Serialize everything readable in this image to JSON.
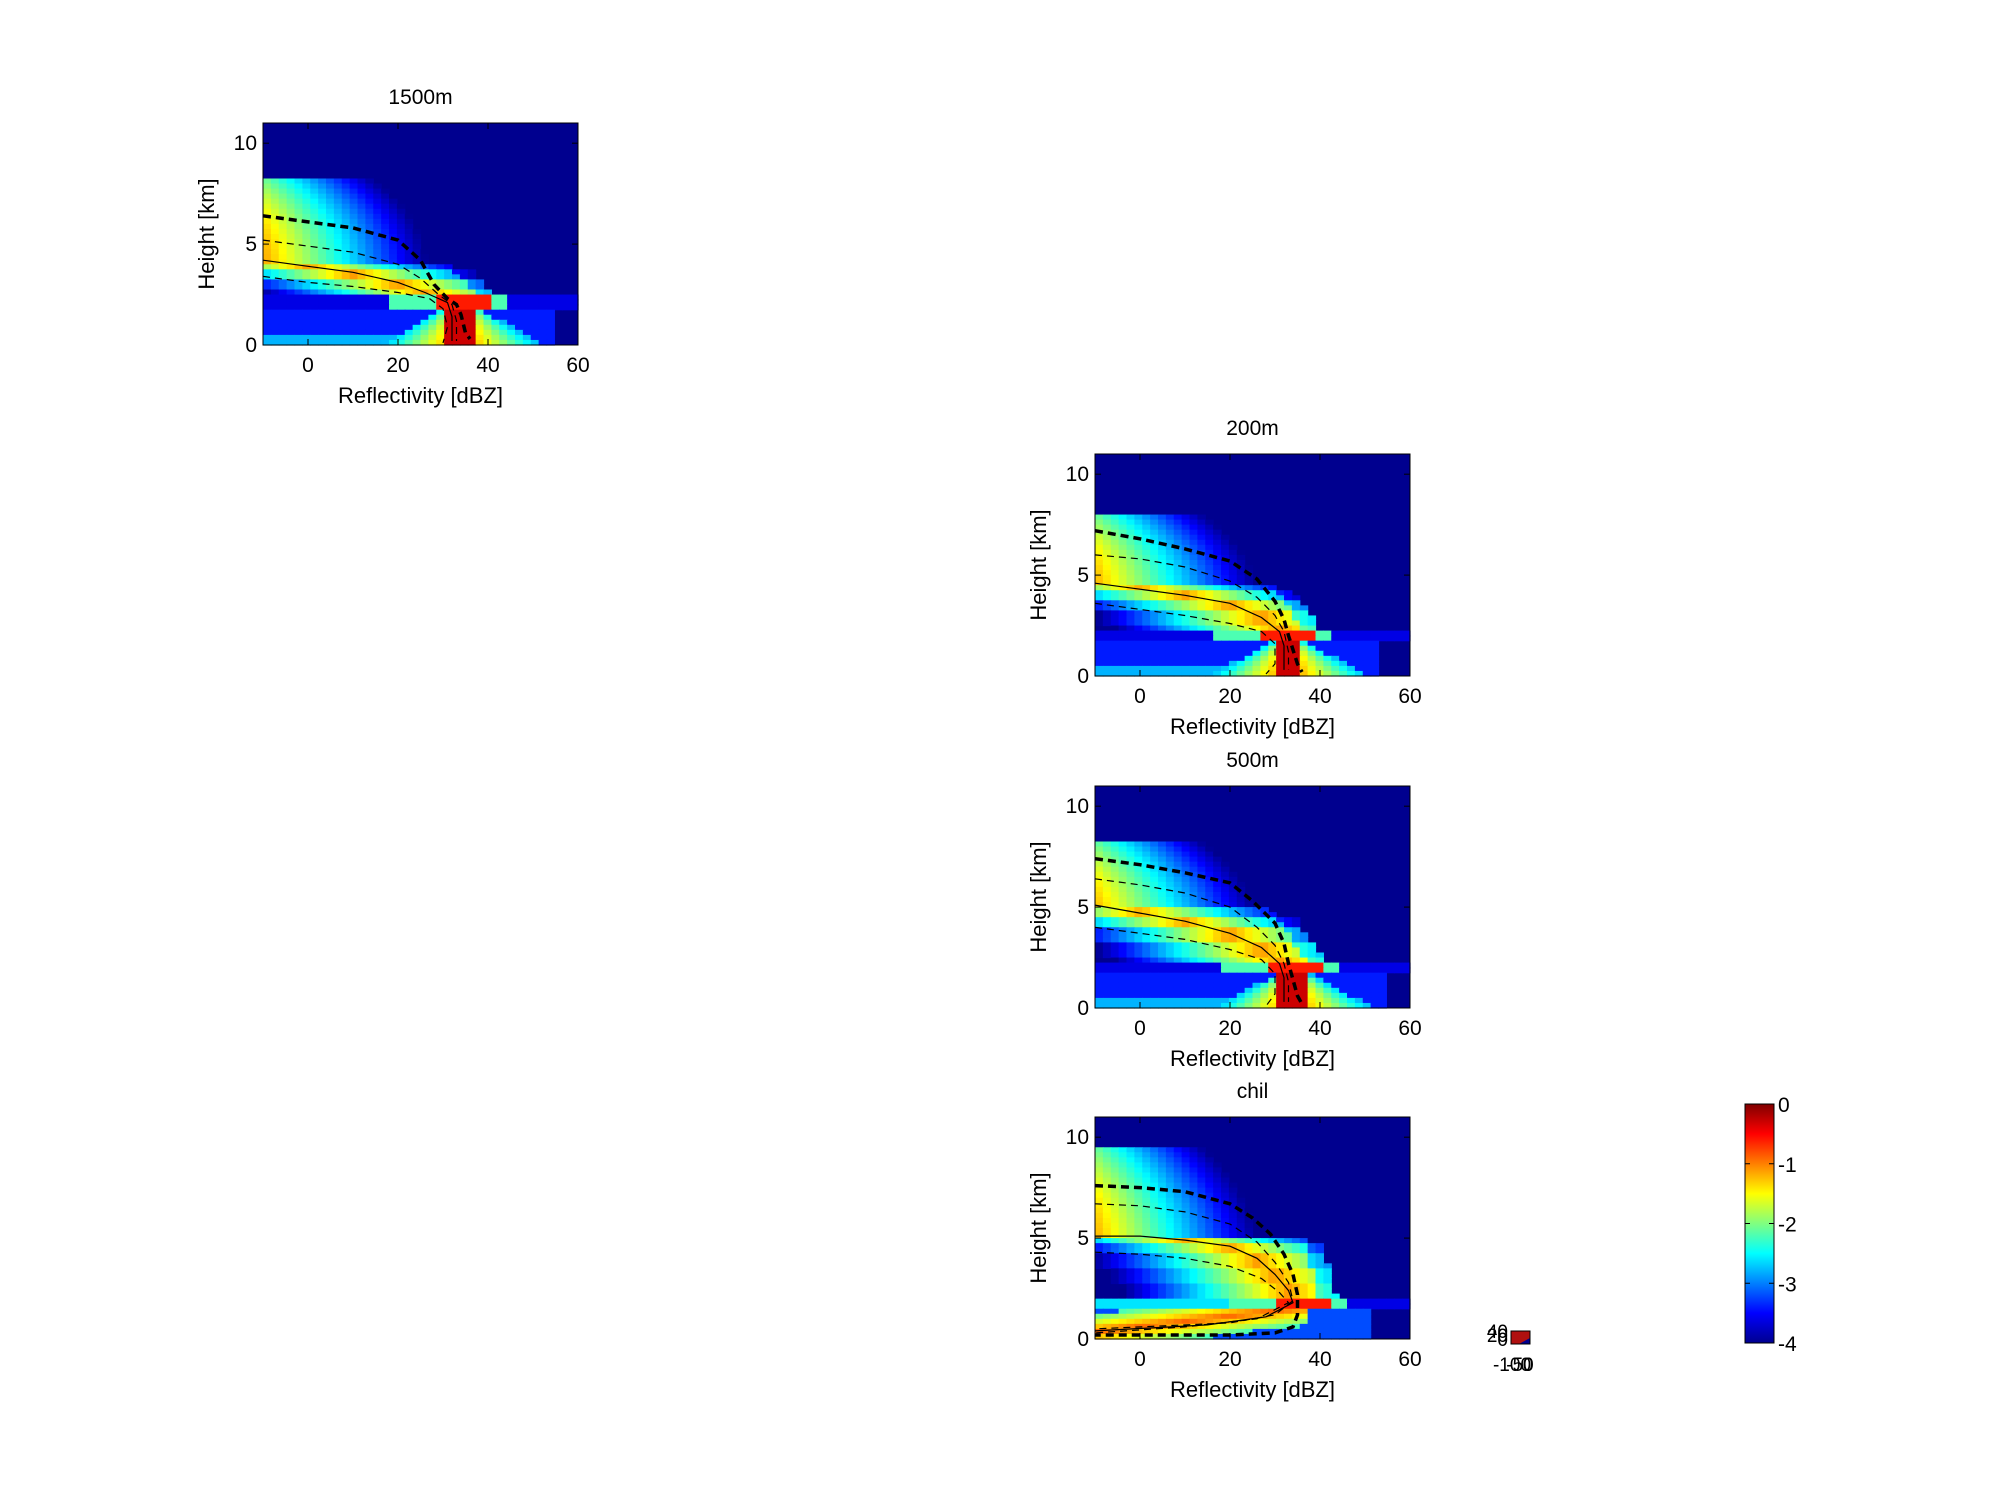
{
  "chart_data": [
    {
      "type": "heatmap",
      "title": "1500m",
      "xlabel": "Reflectivity [dBZ]",
      "ylabel": "Height [km]",
      "xlim": [
        -10,
        60
      ],
      "ylim": [
        0,
        11
      ],
      "xticks": [
        0,
        20,
        40,
        60
      ],
      "yticks": [
        0,
        5,
        10
      ],
      "cloud_top_km": 8.3,
      "cloud_top_edge_dbz": 20,
      "melting_layer_km": 2.2,
      "peak_dbz": 34,
      "profiles": {
        "thick_dashed": [
          [
            -10,
            6.4
          ],
          [
            0,
            6.1
          ],
          [
            10,
            5.8
          ],
          [
            20,
            5.2
          ],
          [
            25,
            4.2
          ],
          [
            28,
            3.0
          ],
          [
            31,
            2.3
          ],
          [
            33,
            2.0
          ],
          [
            34,
            1.5
          ],
          [
            35,
            0.6
          ],
          [
            36,
            0.3
          ]
        ],
        "thin_dashed_upper": [
          [
            -10,
            5.2
          ],
          [
            0,
            4.9
          ],
          [
            10,
            4.6
          ],
          [
            20,
            4.0
          ],
          [
            25,
            3.3
          ],
          [
            29,
            2.5
          ],
          [
            32,
            2.0
          ],
          [
            33,
            1.2
          ],
          [
            33,
            0.2
          ]
        ],
        "thin_solid": [
          [
            -10,
            4.2
          ],
          [
            0,
            3.9
          ],
          [
            10,
            3.6
          ],
          [
            20,
            3.1
          ],
          [
            26,
            2.6
          ],
          [
            31,
            2.1
          ],
          [
            32,
            1.4
          ],
          [
            32,
            0.2
          ]
        ],
        "thin_dashed_lower": [
          [
            -10,
            3.4
          ],
          [
            0,
            3.1
          ],
          [
            10,
            2.9
          ],
          [
            20,
            2.6
          ],
          [
            27,
            2.3
          ],
          [
            30,
            1.8
          ],
          [
            31,
            0.9
          ],
          [
            30,
            0.1
          ]
        ]
      }
    },
    {
      "type": "heatmap",
      "title": "200m",
      "xlabel": "Reflectivity [dBZ]",
      "ylabel": "Height [km]",
      "xlim": [
        -10,
        60
      ],
      "ylim": [
        0,
        11
      ],
      "xticks": [
        0,
        20,
        40,
        60
      ],
      "yticks": [
        0,
        5,
        10
      ],
      "cloud_top_km": 8.0,
      "cloud_top_edge_dbz": 23,
      "melting_layer_km": 2.0,
      "peak_dbz": 33,
      "profiles": {
        "thick_dashed": [
          [
            -10,
            7.2
          ],
          [
            0,
            6.8
          ],
          [
            10,
            6.3
          ],
          [
            20,
            5.7
          ],
          [
            26,
            4.8
          ],
          [
            30,
            3.7
          ],
          [
            32,
            2.8
          ],
          [
            33,
            2.0
          ],
          [
            34,
            1.3
          ],
          [
            35,
            0.6
          ],
          [
            36,
            0.2
          ]
        ],
        "thin_dashed_upper": [
          [
            -10,
            6.0
          ],
          [
            0,
            5.8
          ],
          [
            10,
            5.4
          ],
          [
            20,
            4.7
          ],
          [
            26,
            3.9
          ],
          [
            30,
            3.0
          ],
          [
            32,
            2.2
          ],
          [
            33,
            1.2
          ],
          [
            33,
            0.3
          ]
        ],
        "thin_solid": [
          [
            -10,
            4.6
          ],
          [
            0,
            4.3
          ],
          [
            10,
            4.0
          ],
          [
            20,
            3.6
          ],
          [
            27,
            2.9
          ],
          [
            31,
            2.2
          ],
          [
            32,
            1.5
          ],
          [
            32,
            0.3
          ]
        ],
        "thin_dashed_lower": [
          [
            -10,
            3.6
          ],
          [
            0,
            3.3
          ],
          [
            10,
            3.0
          ],
          [
            20,
            2.6
          ],
          [
            27,
            2.2
          ],
          [
            30,
            1.6
          ],
          [
            30,
            0.6
          ],
          [
            28,
            0.1
          ]
        ]
      }
    },
    {
      "type": "heatmap",
      "title": "500m",
      "xlabel": "Reflectivity [dBZ]",
      "ylabel": "Height [km]",
      "xlim": [
        -10,
        60
      ],
      "ylim": [
        0,
        11
      ],
      "xticks": [
        0,
        20,
        40,
        60
      ],
      "yticks": [
        0,
        5,
        10
      ],
      "cloud_top_km": 8.2,
      "cloud_top_edge_dbz": 23,
      "melting_layer_km": 2.0,
      "peak_dbz": 34,
      "profiles": {
        "thick_dashed": [
          [
            -10,
            7.4
          ],
          [
            0,
            7.1
          ],
          [
            10,
            6.7
          ],
          [
            20,
            6.2
          ],
          [
            25,
            5.3
          ],
          [
            30,
            4.2
          ],
          [
            32,
            3.2
          ],
          [
            33,
            2.2
          ],
          [
            34,
            1.4
          ],
          [
            35,
            0.6
          ],
          [
            36,
            0.2
          ]
        ],
        "thin_dashed_upper": [
          [
            -10,
            6.4
          ],
          [
            0,
            6.1
          ],
          [
            10,
            5.7
          ],
          [
            20,
            5.0
          ],
          [
            26,
            4.0
          ],
          [
            30,
            3.1
          ],
          [
            32,
            2.2
          ],
          [
            33,
            1.3
          ],
          [
            33,
            0.3
          ]
        ],
        "thin_solid": [
          [
            -10,
            5.1
          ],
          [
            0,
            4.7
          ],
          [
            10,
            4.3
          ],
          [
            20,
            3.7
          ],
          [
            27,
            3.0
          ],
          [
            31,
            2.2
          ],
          [
            32,
            1.5
          ],
          [
            32,
            0.3
          ]
        ],
        "thin_dashed_lower": [
          [
            -10,
            4.0
          ],
          [
            0,
            3.7
          ],
          [
            10,
            3.4
          ],
          [
            20,
            2.9
          ],
          [
            27,
            2.4
          ],
          [
            30,
            1.7
          ],
          [
            30,
            0.7
          ],
          [
            28,
            0.1
          ]
        ]
      }
    },
    {
      "type": "heatmap",
      "title": "chil",
      "xlabel": "Reflectivity [dBZ]",
      "ylabel": "Height [km]",
      "xlim": [
        -10,
        60
      ],
      "ylim": [
        0,
        11
      ],
      "xticks": [
        0,
        20,
        40,
        60
      ],
      "yticks": [
        0,
        5,
        10
      ],
      "cloud_top_km": 9.5,
      "cloud_top_edge_dbz": 35,
      "melting_layer_km": 1.8,
      "peak_dbz": 36,
      "profiles": {
        "thick_dashed": [
          [
            -10,
            7.6
          ],
          [
            0,
            7.5
          ],
          [
            10,
            7.3
          ],
          [
            20,
            6.7
          ],
          [
            25,
            6.0
          ],
          [
            29,
            5.2
          ],
          [
            32,
            4.2
          ],
          [
            34,
            3.2
          ],
          [
            35,
            2.2
          ],
          [
            35,
            1.2
          ],
          [
            34,
            0.6
          ],
          [
            30,
            0.3
          ],
          [
            20,
            0.2
          ],
          [
            -10,
            0.2
          ]
        ],
        "thin_dashed_upper": [
          [
            -10,
            6.7
          ],
          [
            0,
            6.6
          ],
          [
            10,
            6.3
          ],
          [
            20,
            5.7
          ],
          [
            26,
            4.8
          ],
          [
            30,
            3.8
          ],
          [
            33,
            2.8
          ],
          [
            34,
            1.9
          ],
          [
            30,
            1.2
          ],
          [
            20,
            0.8
          ],
          [
            -10,
            0.5
          ]
        ],
        "thin_solid": [
          [
            -10,
            5.1
          ],
          [
            0,
            5.1
          ],
          [
            10,
            4.9
          ],
          [
            20,
            4.6
          ],
          [
            26,
            4.0
          ],
          [
            30,
            3.2
          ],
          [
            33,
            2.4
          ],
          [
            34,
            1.8
          ],
          [
            28,
            1.1
          ],
          [
            15,
            0.7
          ],
          [
            -10,
            0.4
          ]
        ],
        "thin_dashed_lower": [
          [
            -10,
            4.3
          ],
          [
            0,
            4.2
          ],
          [
            10,
            4.0
          ],
          [
            20,
            3.6
          ],
          [
            27,
            3.0
          ],
          [
            31,
            2.3
          ],
          [
            33,
            1.8
          ],
          [
            26,
            1.0
          ],
          [
            10,
            0.6
          ],
          [
            -10,
            0.3
          ]
        ]
      }
    }
  ],
  "colorbar": {
    "min": -4,
    "max": 0,
    "ticks": [
      "0",
      "-1",
      "-2",
      "-3",
      "-4"
    ]
  },
  "stray_axes": {
    "ytick_labels": [
      "40",
      "20",
      "0"
    ],
    "xtick_labels": [
      "-100",
      "-50",
      "0"
    ]
  }
}
